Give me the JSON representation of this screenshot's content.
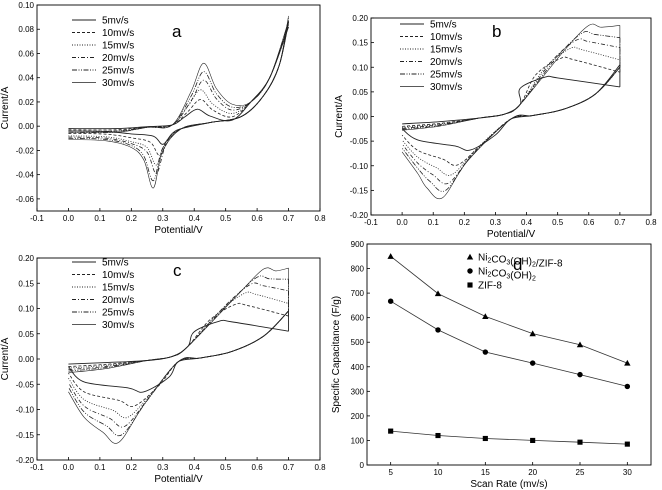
{
  "chart_data": [
    {
      "panel": "a",
      "type": "line",
      "letter": "a",
      "xlabel": "Potential/V",
      "ylabel": "Current/A",
      "xlim": [
        -0.1,
        0.8
      ],
      "ylim": [
        -0.07,
        0.1
      ],
      "xticks": [
        "-0.1",
        "0.0",
        "0.1",
        "0.2",
        "0.3",
        "0.4",
        "0.5",
        "0.6",
        "0.7",
        "0.8"
      ],
      "yticks": [
        "-0.06",
        "-0.04",
        "-0.02",
        "0.00",
        "0.02",
        "0.04",
        "0.06",
        "0.08",
        "0.10"
      ],
      "series": [
        {
          "name": "5mv/s",
          "style": "solid",
          "cathodic_peak": [
            0.3,
            -0.015
          ],
          "anodic_peak": [
            0.41,
            0.014
          ],
          "lower_start": -0.004,
          "upper_start": -0.002,
          "end": [
            0.7,
            0.086
          ]
        },
        {
          "name": "10mv/s",
          "style": "dash",
          "cathodic_peak": [
            0.29,
            -0.024
          ],
          "anodic_peak": [
            0.42,
            0.022
          ],
          "lower_start": -0.006,
          "upper_start": -0.003,
          "end": [
            0.7,
            0.087
          ]
        },
        {
          "name": "15mv/s",
          "style": "dot",
          "cathodic_peak": [
            0.28,
            -0.032
          ],
          "anodic_peak": [
            0.42,
            0.03
          ],
          "lower_start": -0.008,
          "upper_start": -0.004,
          "end": [
            0.7,
            0.088
          ]
        },
        {
          "name": "20mv/s",
          "style": "dashdot",
          "cathodic_peak": [
            0.28,
            -0.039
          ],
          "anodic_peak": [
            0.43,
            0.038
          ],
          "lower_start": -0.009,
          "upper_start": -0.004,
          "end": [
            0.7,
            0.089
          ]
        },
        {
          "name": "25mv/s",
          "style": "dashdotdot",
          "cathodic_peak": [
            0.27,
            -0.045
          ],
          "anodic_peak": [
            0.43,
            0.045
          ],
          "lower_start": -0.01,
          "upper_start": -0.005,
          "end": [
            0.7,
            0.09
          ]
        },
        {
          "name": "30mv/s",
          "style": "solidthin",
          "cathodic_peak": [
            0.27,
            -0.051
          ],
          "anodic_peak": [
            0.43,
            0.052
          ],
          "lower_start": -0.011,
          "upper_start": -0.005,
          "end": [
            0.7,
            0.091
          ]
        }
      ]
    },
    {
      "panel": "b",
      "type": "line",
      "letter": "b",
      "xlabel": "Potential/V",
      "ylabel": "Current/A",
      "xlim": [
        -0.1,
        0.8
      ],
      "ylim": [
        -0.2,
        0.2
      ],
      "xticks": [
        "-0.1",
        "0.0",
        "0.1",
        "0.2",
        "0.3",
        "0.4",
        "0.5",
        "0.6",
        "0.7",
        "0.8"
      ],
      "yticks": [
        "-0.20",
        "-0.15",
        "-0.10",
        "-0.05",
        "0.00",
        "0.05",
        "0.10",
        "0.15",
        "0.20"
      ],
      "series": [
        {
          "name": "5mv/s",
          "style": "solid",
          "cathodic_peak": [
            0.22,
            -0.068
          ],
          "anodic_peak": [
            0.46,
            0.08
          ],
          "lower_start": -0.025,
          "upper_start": -0.015,
          "end_high": 0.06,
          "end_low": 0.105
        },
        {
          "name": "10mv/s",
          "style": "dash",
          "cathodic_peak": [
            0.18,
            -0.098
          ],
          "anodic_peak": [
            0.51,
            0.118
          ],
          "lower_start": -0.038,
          "upper_start": -0.02,
          "end_high": 0.09,
          "end_low": 0.1
        },
        {
          "name": "15mv/s",
          "style": "dot",
          "cathodic_peak": [
            0.16,
            -0.118
          ],
          "anodic_peak": [
            0.54,
            0.138
          ],
          "lower_start": -0.048,
          "upper_start": -0.022,
          "end_high": 0.115,
          "end_low": 0.1
        },
        {
          "name": "20mv/s",
          "style": "dashdot",
          "cathodic_peak": [
            0.15,
            -0.135
          ],
          "anodic_peak": [
            0.56,
            0.155
          ],
          "lower_start": -0.056,
          "upper_start": -0.024,
          "end_high": 0.14,
          "end_low": 0.1
        },
        {
          "name": "25mv/s",
          "style": "dashdotdot",
          "cathodic_peak": [
            0.14,
            -0.15
          ],
          "anodic_peak": [
            0.58,
            0.17
          ],
          "lower_start": -0.064,
          "upper_start": -0.026,
          "end_high": 0.16,
          "end_low": 0.1
        },
        {
          "name": "30mv/s",
          "style": "solidthin",
          "cathodic_peak": [
            0.13,
            -0.165
          ],
          "anodic_peak": [
            0.6,
            0.185
          ],
          "lower_start": -0.072,
          "upper_start": -0.028,
          "end_high": 0.185,
          "end_low": 0.1
        }
      ]
    },
    {
      "panel": "c",
      "type": "line",
      "letter": "c",
      "xlabel": "Potential/V",
      "ylabel": "Current/A",
      "xlim": [
        -0.1,
        0.8
      ],
      "ylim": [
        -0.2,
        0.2
      ],
      "xticks": [
        "-0.1",
        "0.0",
        "0.1",
        "0.2",
        "0.3",
        "0.4",
        "0.5",
        "0.6",
        "0.7",
        "0.8"
      ],
      "yticks": [
        "-0.20",
        "-0.15",
        "-0.10",
        "-0.05",
        "0.00",
        "0.05",
        "0.10",
        "0.15",
        "0.20"
      ],
      "series": [
        {
          "name": "5mv/s",
          "style": "solid",
          "cathodic_peak": [
            0.24,
            -0.065
          ],
          "anodic_peak": [
            0.48,
            0.075
          ],
          "lower_start": -0.015,
          "upper_start": -0.01,
          "end_high": 0.055,
          "end_low": 0.095
        },
        {
          "name": "10mv/s",
          "style": "dash",
          "cathodic_peak": [
            0.21,
            -0.093
          ],
          "anodic_peak": [
            0.53,
            0.108
          ],
          "lower_start": -0.028,
          "upper_start": -0.015,
          "end_high": 0.085,
          "end_low": 0.095
        },
        {
          "name": "15mv/s",
          "style": "dot",
          "cathodic_peak": [
            0.19,
            -0.115
          ],
          "anodic_peak": [
            0.56,
            0.13
          ],
          "lower_start": -0.038,
          "upper_start": -0.018,
          "end_high": 0.11,
          "end_low": 0.095
        },
        {
          "name": "20mv/s",
          "style": "dashdot",
          "cathodic_peak": [
            0.18,
            -0.133
          ],
          "anodic_peak": [
            0.58,
            0.148
          ],
          "lower_start": -0.047,
          "upper_start": -0.021,
          "end_high": 0.135,
          "end_low": 0.095
        },
        {
          "name": "25mv/s",
          "style": "dashdotdot",
          "cathodic_peak": [
            0.17,
            -0.15
          ],
          "anodic_peak": [
            0.6,
            0.162
          ],
          "lower_start": -0.056,
          "upper_start": -0.024,
          "end_high": 0.158,
          "end_low": 0.095
        },
        {
          "name": "30mv/s",
          "style": "solidthin",
          "cathodic_peak": [
            0.16,
            -0.165
          ],
          "anodic_peak": [
            0.62,
            0.178
          ],
          "lower_start": -0.065,
          "upper_start": -0.027,
          "end_high": 0.18,
          "end_low": 0.095
        }
      ]
    },
    {
      "panel": "d",
      "type": "line",
      "letter": "d",
      "xlabel": "Scan Rate (mv/s)",
      "ylabel": "Specific Capacitance (F/g)",
      "xlim": [
        2.5,
        32.5
      ],
      "ylim": [
        0,
        900
      ],
      "xticks": [
        "5",
        "10",
        "15",
        "20",
        "25",
        "30"
      ],
      "yticks": [
        "0",
        "100",
        "200",
        "300",
        "400",
        "500",
        "600",
        "700",
        "800",
        "900"
      ],
      "x": [
        5,
        10,
        15,
        20,
        25,
        30
      ],
      "series": [
        {
          "name": "Ni2CO3(OH)2/ZIF-8",
          "marker": "triangle",
          "values": [
            850,
            698,
            605,
            535,
            490,
            415
          ]
        },
        {
          "name": "Ni2CO3(OH)2",
          "marker": "circle",
          "values": [
            667,
            550,
            460,
            415,
            368,
            320
          ]
        },
        {
          "name": "ZIF-8",
          "marker": "square",
          "values": [
            138,
            120,
            108,
            100,
            93,
            85
          ]
        }
      ],
      "legend_labels": [
        {
          "base1": "Ni",
          "sub1": "2",
          "mid": "CO",
          "sub2": "3",
          "tail": "(OH)",
          "sub3": "2",
          "suffix": "/ZIF-8"
        },
        {
          "base1": "Ni",
          "sub1": "2",
          "mid": "CO",
          "sub2": "3",
          "tail": "(OH)",
          "sub3": "2",
          "suffix": ""
        },
        {
          "base1": "ZIF-8",
          "sub1": "",
          "mid": "",
          "sub2": "",
          "tail": "",
          "sub3": "",
          "suffix": ""
        }
      ]
    }
  ]
}
